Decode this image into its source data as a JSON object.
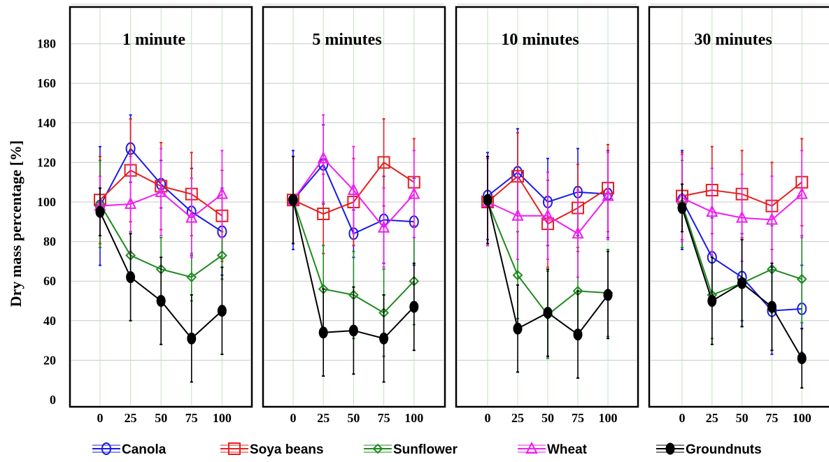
{
  "chart_data": {
    "type": "line",
    "ylabel": "Dry mass percentage [%]",
    "ylim": [
      0,
      200
    ],
    "yticks": [
      "0",
      "20",
      "40",
      "60",
      "80",
      "100",
      "120",
      "140",
      "160",
      "180"
    ],
    "x": [
      0,
      25,
      50,
      75,
      100
    ],
    "xticks": [
      "0",
      "25",
      "50",
      "75",
      "100"
    ],
    "grid": true,
    "legend_position": "bottom",
    "series_styles": [
      {
        "name": "Canola",
        "color": "#1a1ae6",
        "marker": "circle"
      },
      {
        "name": "Soya beans",
        "color": "#e62020",
        "marker": "square"
      },
      {
        "name": "Sunflower",
        "color": "#1f8a1f",
        "marker": "diamond"
      },
      {
        "name": "Wheat",
        "color": "#f01ef0",
        "marker": "triangle"
      },
      {
        "name": "Groundnuts",
        "color": "#000000",
        "marker": "filled-circle"
      }
    ],
    "panels": [
      {
        "title": "1 minute",
        "series": [
          {
            "name": "Canola",
            "values": [
              98,
              127,
              109,
              95,
              85
            ],
            "errors": [
              30,
              17,
              12,
              22,
              22
            ]
          },
          {
            "name": "Soya beans",
            "values": [
              101,
              116,
              108,
              104,
              93
            ],
            "errors": [
              22,
              26,
              22,
              21,
              23
            ]
          },
          {
            "name": "Sunflower",
            "values": [
              99,
              73,
              66,
              62,
              73
            ],
            "errors": [
              22,
              12,
              16,
              12,
              12
            ]
          },
          {
            "name": "Wheat",
            "values": [
              98,
              99,
              105,
              92,
              104
            ],
            "errors": [
              15,
              24,
              22,
              20,
              22
            ]
          },
          {
            "name": "Groundnuts",
            "values": [
              95,
              62,
              50,
              31,
              45
            ],
            "errors": [
              12,
              22,
              22,
              22,
              22
            ]
          }
        ]
      },
      {
        "title": "5 minutes",
        "series": [
          {
            "name": "Canola",
            "values": [
              101,
              119,
              84,
              91,
              90
            ],
            "errors": [
              25,
              20,
              12,
              22,
              22
            ]
          },
          {
            "name": "Soya beans",
            "values": [
              101,
              94,
              100,
              120,
              110
            ],
            "errors": [
              22,
              20,
              22,
              22,
              22
            ]
          },
          {
            "name": "Sunflower",
            "values": [
              101,
              56,
              53,
              44,
              60
            ],
            "errors": [
              22,
              22,
              22,
              22,
              22
            ]
          },
          {
            "name": "Wheat",
            "values": [
              101,
              122,
              106,
              87,
              104
            ],
            "errors": [
              22,
              22,
              22,
              20,
              22
            ]
          },
          {
            "name": "Groundnuts",
            "values": [
              101,
              34,
              35,
              31,
              47
            ],
            "errors": [
              22,
              22,
              22,
              22,
              22
            ]
          }
        ]
      },
      {
        "title": "10 minutes",
        "series": [
          {
            "name": "Canola",
            "values": [
              103,
              115,
              100,
              105,
              104
            ],
            "errors": [
              22,
              22,
              22,
              22,
              22
            ]
          },
          {
            "name": "Soya beans",
            "values": [
              100,
              113,
              89,
              97,
              107
            ],
            "errors": [
              22,
              22,
              22,
              22,
              22
            ]
          },
          {
            "name": "Sunflower",
            "values": [
              100,
              63,
              43,
              55,
              54
            ],
            "errors": [
              22,
              22,
              22,
              22,
              22
            ]
          },
          {
            "name": "Wheat",
            "values": [
              100,
              93,
              93,
              84,
              103
            ],
            "errors": [
              22,
              22,
              22,
              22,
              22
            ]
          },
          {
            "name": "Groundnuts",
            "values": [
              101,
              36,
              44,
              33,
              53
            ],
            "errors": [
              22,
              22,
              22,
              22,
              22
            ]
          }
        ]
      },
      {
        "title": "30 minutes",
        "series": [
          {
            "name": "Canola",
            "values": [
              101,
              72,
              62,
              45,
              46
            ],
            "errors": [
              25,
              20,
              22,
              22,
              22
            ]
          },
          {
            "name": "Soya beans",
            "values": [
              103,
              106,
              104,
              98,
              110
            ],
            "errors": [
              22,
              22,
              22,
              22,
              22
            ]
          },
          {
            "name": "Sunflower",
            "values": [
              99,
              53,
              59,
              66,
              61
            ],
            "errors": [
              22,
              22,
              22,
              22,
              22
            ]
          },
          {
            "name": "Wheat",
            "values": [
              102,
              95,
              92,
              91,
              104
            ],
            "errors": [
              22,
              22,
              22,
              22,
              22
            ]
          },
          {
            "name": "Groundnuts",
            "values": [
              97,
              50,
              59,
              47,
              21
            ],
            "errors": [
              12,
              22,
              22,
              22,
              15
            ]
          }
        ]
      }
    ]
  }
}
